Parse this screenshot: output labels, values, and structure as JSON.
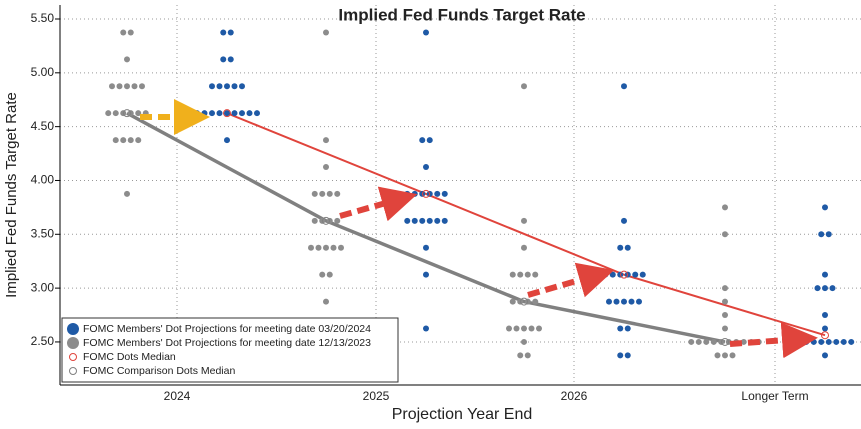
{
  "chart_data": {
    "type": "dot_plot",
    "title": "Implied Fed Funds Target Rate",
    "y_label": "Implied Fed Funds Target Rate",
    "x_label": "Projection Year End",
    "categories": [
      "2024",
      "2025",
      "2026",
      "Longer Term"
    ],
    "ylim": [
      2.1,
      5.63
    ],
    "yticks": [
      {
        "value": 2.5,
        "label": "2.50"
      },
      {
        "value": 3,
        "label": "3.00"
      },
      {
        "value": 3.5,
        "label": "3.50"
      },
      {
        "value": 4,
        "label": "4.00"
      },
      {
        "value": 4.5,
        "label": "4.50"
      },
      {
        "value": 5,
        "label": "5.00"
      },
      {
        "value": 5.5,
        "label": "5.50"
      }
    ],
    "grid": true,
    "legend": "lower left",
    "series": [
      {
        "name": "FOMC Members' Dot Projections for meeting date 03/20/2024",
        "color": "#1f5aa6",
        "offset": "right",
        "values": [
          [
            5.375,
            5.375,
            5.125,
            5.125,
            4.875,
            4.875,
            4.875,
            4.875,
            4.875,
            4.625,
            4.625,
            4.625,
            4.625,
            4.625,
            4.625,
            4.625,
            4.625,
            4.625,
            4.375
          ],
          [
            5.375,
            4.375,
            4.375,
            4.125,
            3.875,
            3.875,
            3.875,
            3.875,
            3.875,
            3.875,
            3.625,
            3.625,
            3.625,
            3.625,
            3.625,
            3.625,
            3.375,
            3.125,
            2.625
          ],
          [
            4.875,
            3.625,
            3.375,
            3.375,
            3.125,
            3.125,
            3.125,
            3.125,
            3.125,
            3.125,
            2.875,
            2.875,
            2.875,
            2.875,
            2.875,
            2.625,
            2.625,
            2.375,
            2.375
          ],
          [
            3.75,
            3.5,
            3.5,
            3.125,
            3.0,
            3.0,
            3.0,
            2.75,
            2.625,
            2.5,
            2.5,
            2.5,
            2.5,
            2.5,
            2.5,
            2.5,
            2.5,
            2.375
          ]
        ]
      },
      {
        "name": "FOMC Members' Dot Projections for meeting date 12/13/2023",
        "color": "#8c8c8c",
        "offset": "left",
        "values": [
          [
            5.375,
            5.375,
            5.125,
            4.875,
            4.875,
            4.875,
            4.875,
            4.875,
            4.625,
            4.625,
            4.625,
            4.625,
            4.625,
            4.625,
            4.375,
            4.375,
            4.375,
            4.375,
            3.875
          ],
          [
            5.375,
            4.375,
            4.125,
            3.875,
            3.875,
            3.875,
            3.875,
            3.625,
            3.625,
            3.625,
            3.625,
            3.375,
            3.375,
            3.375,
            3.375,
            3.375,
            3.125,
            3.125,
            2.875
          ],
          [
            4.875,
            3.625,
            3.375,
            3.125,
            3.125,
            3.125,
            3.125,
            2.875,
            2.875,
            2.875,
            2.875,
            2.625,
            2.625,
            2.625,
            2.625,
            2.625,
            2.5,
            2.375,
            2.375
          ],
          [
            3.75,
            3.5,
            3.0,
            2.875,
            2.75,
            2.625,
            2.5,
            2.5,
            2.5,
            2.5,
            2.5,
            2.5,
            2.5,
            2.5,
            2.5,
            2.5,
            2.375,
            2.375,
            2.375
          ]
        ]
      },
      {
        "name": "FOMC Dots Median",
        "color": "#e0443c",
        "offset": "right",
        "median": true,
        "values": [
          4.625,
          3.875,
          3.125,
          2.5625
        ]
      },
      {
        "name": "FOMC Comparison Dots Median",
        "color": "#808080",
        "offset": "left",
        "median": true,
        "values": [
          4.625,
          3.625,
          2.875,
          2.5
        ]
      }
    ]
  }
}
